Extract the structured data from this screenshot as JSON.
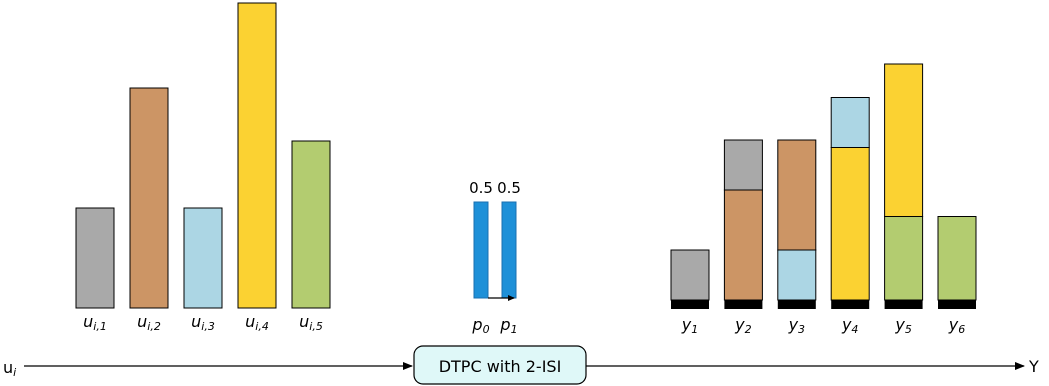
{
  "input": {
    "label_main": "u",
    "label_sub": "i"
  },
  "output": {
    "label": "Y"
  },
  "channel_box": {
    "label": "DTPC with 2-ISI",
    "fill": "#dff8f8"
  },
  "colors": {
    "gray": "#a9a9a9",
    "brown": "#cc9565",
    "lightblue": "#acd6e4",
    "yellow": "#fbd232",
    "green": "#b3cc70",
    "channel_blue": "#1e90d8",
    "baseline_black": "#000000"
  },
  "input_bars": [
    {
      "main": "u",
      "sub": "i,1",
      "value": 1.0,
      "color": "gray"
    },
    {
      "main": "u",
      "sub": "i,2",
      "value": 2.2,
      "color": "brown"
    },
    {
      "main": "u",
      "sub": "i,3",
      "value": 1.0,
      "color": "lightblue"
    },
    {
      "main": "u",
      "sub": "i,4",
      "value": 3.05,
      "color": "yellow"
    },
    {
      "main": "u",
      "sub": "i,5",
      "value": 1.67,
      "color": "green"
    }
  ],
  "channel_taps": [
    {
      "main": "p",
      "sub": "0",
      "coefficient": "0.5"
    },
    {
      "main": "p",
      "sub": "1",
      "coefficient": "0.5"
    }
  ],
  "output_bars": [
    {
      "main": "y",
      "sub": "1",
      "segments": [
        {
          "value": 1.0,
          "color": "gray"
        }
      ]
    },
    {
      "main": "y",
      "sub": "2",
      "segments": [
        {
          "value": 2.2,
          "color": "brown"
        },
        {
          "value": 1.0,
          "color": "gray"
        }
      ]
    },
    {
      "main": "y",
      "sub": "3",
      "segments": [
        {
          "value": 1.0,
          "color": "lightblue"
        },
        {
          "value": 2.2,
          "color": "brown"
        }
      ]
    },
    {
      "main": "y",
      "sub": "4",
      "segments": [
        {
          "value": 3.05,
          "color": "yellow"
        },
        {
          "value": 1.0,
          "color": "lightblue"
        }
      ]
    },
    {
      "main": "y",
      "sub": "5",
      "segments": [
        {
          "value": 1.67,
          "color": "green"
        },
        {
          "value": 3.05,
          "color": "yellow"
        }
      ]
    },
    {
      "main": "y",
      "sub": "6",
      "segments": [
        {
          "value": 1.67,
          "color": "green"
        }
      ]
    }
  ]
}
